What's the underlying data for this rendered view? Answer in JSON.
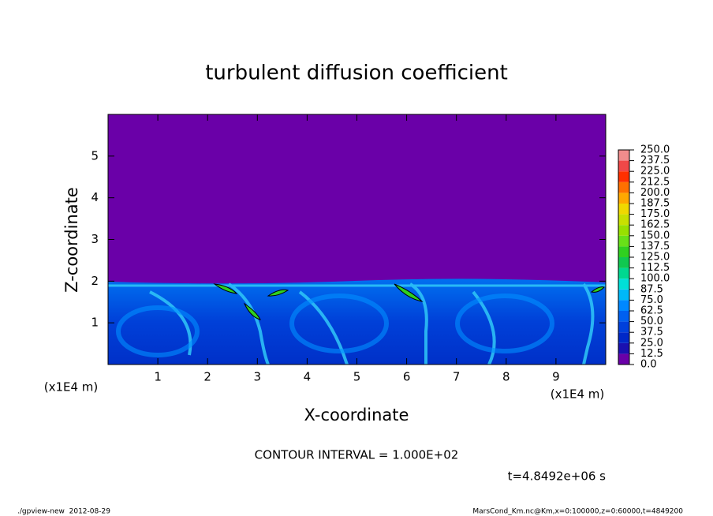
{
  "chart_data": {
    "type": "contour",
    "title": "turbulent diffusion coefficient",
    "xlabel": "X-coordinate",
    "ylabel": "Z-coordinate",
    "x_unit": "(x1E4 m)",
    "xlim": [
      0,
      10
    ],
    "ylim": [
      0,
      6
    ],
    "xticks": [
      1,
      2,
      3,
      4,
      5,
      6,
      7,
      8,
      9
    ],
    "yticks": [
      1,
      2,
      3,
      4,
      5
    ],
    "colorbar": {
      "levels": [
        {
          "value": 0,
          "label": "0.0"
        },
        {
          "value": 12.5,
          "label": "12.5"
        },
        {
          "value": 25,
          "label": "25.0"
        },
        {
          "value": 37.5,
          "label": "37.5"
        },
        {
          "value": 50,
          "label": "50.0"
        },
        {
          "value": 62.5,
          "label": "62.5"
        },
        {
          "value": 75,
          "label": "75.0"
        },
        {
          "value": 87.5,
          "label": "87.5"
        },
        {
          "value": 100,
          "label": "100.0"
        },
        {
          "value": 112.5,
          "label": "112.5"
        },
        {
          "value": 125,
          "label": "125.0"
        },
        {
          "value": 137.5,
          "label": "137.5"
        },
        {
          "value": 150,
          "label": "150.0"
        },
        {
          "value": 162.5,
          "label": "162.5"
        },
        {
          "value": 175,
          "label": "175.0"
        },
        {
          "value": 187.5,
          "label": "187.5"
        },
        {
          "value": 200,
          "label": "200.0"
        },
        {
          "value": 212.5,
          "label": "212.5"
        },
        {
          "value": 225,
          "label": "225.0"
        },
        {
          "value": 237.5,
          "label": "237.5"
        },
        {
          "value": 250,
          "label": "250.0"
        }
      ],
      "colors": [
        "#6a00a8",
        "#1a10b0",
        "#0028c8",
        "#0040dc",
        "#0060f0",
        "#0088ff",
        "#00b8f8",
        "#00e0d8",
        "#00d890",
        "#10c850",
        "#30d020",
        "#68e018",
        "#98e000",
        "#c8e000",
        "#f0d800",
        "#ffa800",
        "#ff7000",
        "#ff3000",
        "#f04848",
        "#f08c8c"
      ]
    },
    "contour_interval": "CONTOUR INTERVAL = 1.000E+02",
    "time_label": "t=4.8492e+06 s",
    "footer_left": "./gpview-new  2012-08-29",
    "footer_right": "MarsCond_Km.nc@Km,x=0:100000,z=0:60000,t=4849200"
  }
}
